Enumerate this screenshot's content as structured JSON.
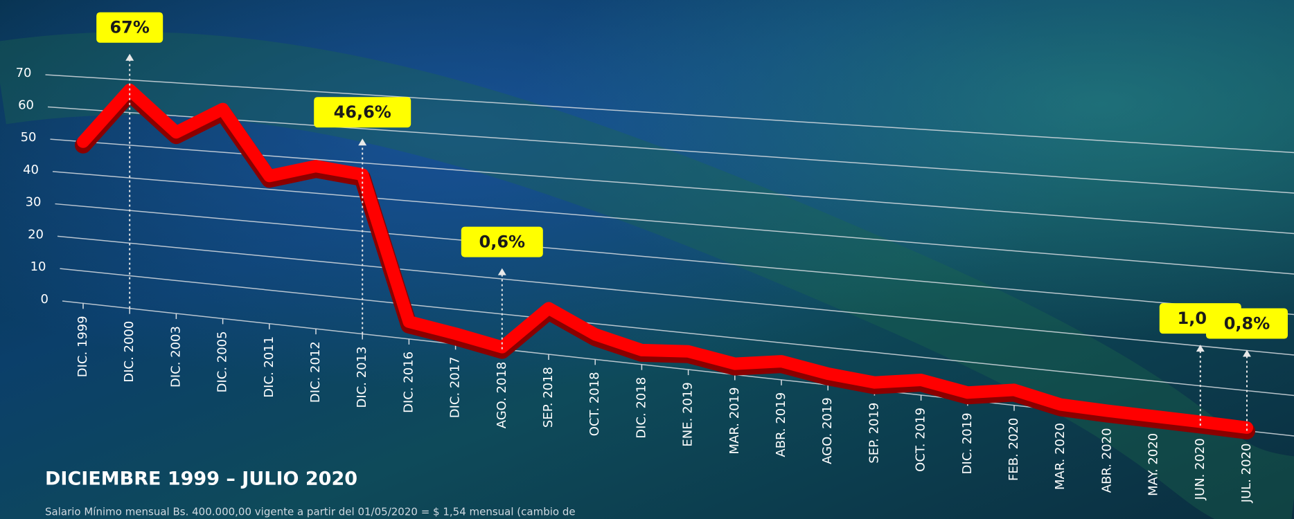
{
  "chart_data": {
    "type": "line",
    "title": "DICIEMBRE 1999 – JULIO 2020",
    "footnote": "Salario Mínimo mensual Bs. 400.000,00 vigente a partir del 01/05/2020 = $ 1,54 mensual (cambio de",
    "categories": [
      "DIC. 1999",
      "DIC. 2000",
      "DIC. 2003",
      "DIC. 2005",
      "DIC. 2011",
      "DIC. 2012",
      "DIC. 2013",
      "DIC. 2016",
      "DIC. 2017",
      "AGO. 2018",
      "SEP. 2018",
      "OCT. 2018",
      "DIC. 2018",
      "ENE. 2019",
      "MAR. 2019",
      "ABR. 2019",
      "AGO. 2019",
      "SEP. 2019",
      "OCT. 2019",
      "DIC. 2019",
      "FEB. 2020",
      "MAR. 2020",
      "ABR. 2020",
      "MAY. 2020",
      "JUN. 2020",
      "JUL. 2020"
    ],
    "values": [
      50,
      67,
      55,
      63,
      44,
      48,
      46.6,
      5,
      3,
      0.6,
      13,
      7,
      4,
      5,
      3,
      5,
      3,
      2,
      4,
      2,
      4,
      1.5,
      1.2,
      1.1,
      1.0,
      0.8
    ],
    "value_labels": [
      null,
      "67%",
      null,
      null,
      null,
      null,
      "46,6%",
      null,
      null,
      "0,6%",
      null,
      null,
      null,
      null,
      null,
      null,
      null,
      null,
      null,
      null,
      null,
      null,
      null,
      null,
      "1,0%",
      "0,8%"
    ],
    "color": "#ff0000",
    "ylim": [
      0,
      70
    ],
    "yticks": [
      0,
      10,
      20,
      30,
      40,
      50,
      60,
      70
    ],
    "grid": true
  }
}
